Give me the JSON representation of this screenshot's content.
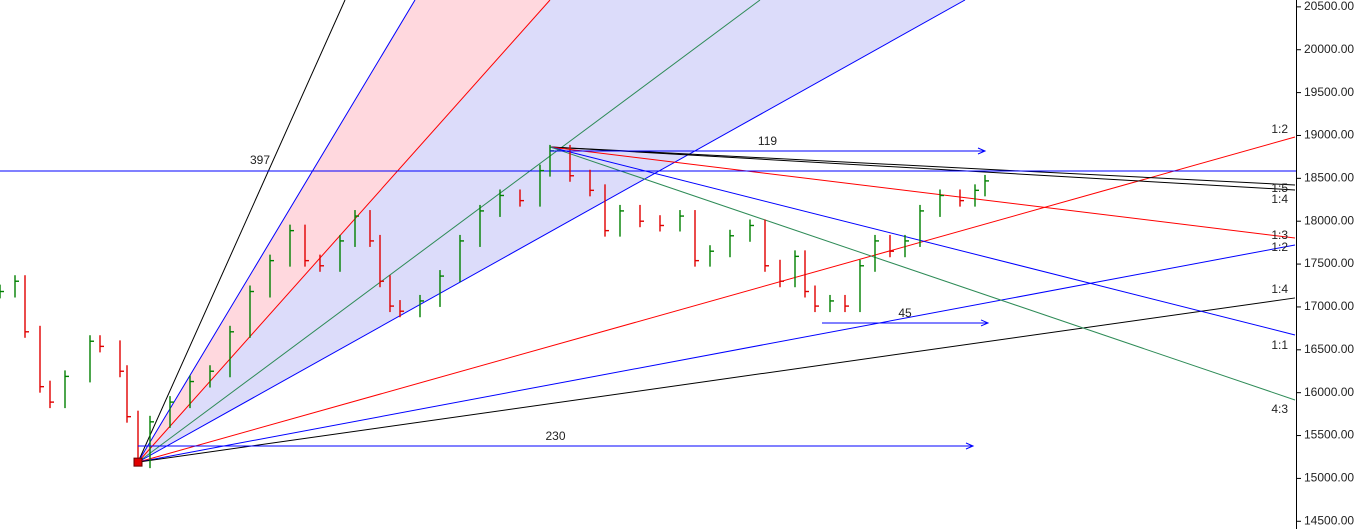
{
  "chart_data": {
    "type": "ohlc",
    "up_color": "#008000",
    "down_color": "#e00000",
    "x": [
      0,
      15,
      25,
      40,
      50,
      65,
      90,
      100,
      120,
      127,
      138,
      150,
      170,
      190,
      210,
      230,
      250,
      270,
      290,
      305,
      320,
      340,
      355,
      370,
      380,
      390,
      400,
      420,
      440,
      460,
      480,
      500,
      520,
      540,
      550,
      570,
      590,
      605,
      620,
      640,
      660,
      680,
      695,
      710,
      730,
      750,
      765,
      780,
      795,
      805,
      815,
      830,
      845,
      860,
      875,
      890,
      905,
      920,
      940,
      960,
      975,
      985
    ],
    "high": [
      17260,
      17370,
      17370,
      16780,
      16140,
      16260,
      16670,
      16670,
      16610,
      16320,
      15790,
      15730,
      15960,
      16200,
      16320,
      16780,
      17250,
      17610,
      17960,
      17960,
      17610,
      17840,
      18130,
      18130,
      17840,
      17370,
      17080,
      17140,
      17430,
      17840,
      18190,
      18370,
      18370,
      18660,
      18890,
      18890,
      18600,
      18430,
      18190,
      18190,
      18070,
      18130,
      18130,
      17720,
      17900,
      18020,
      18020,
      17550,
      17660,
      17660,
      17250,
      17140,
      17140,
      17550,
      17840,
      17840,
      17840,
      18190,
      18370,
      18370,
      18430,
      18540
    ],
    "low": [
      17100,
      17110,
      16640,
      16000,
      15820,
      15820,
      16120,
      16470,
      16180,
      15650,
      15150,
      15120,
      15590,
      15820,
      16060,
      16180,
      16640,
      17110,
      17470,
      17470,
      17410,
      17410,
      17700,
      17700,
      17230,
      16940,
      16880,
      16880,
      17000,
      17290,
      17700,
      18050,
      18170,
      18170,
      18520,
      18460,
      18290,
      17820,
      17820,
      17930,
      17880,
      17880,
      17470,
      17470,
      17580,
      17760,
      17410,
      17230,
      17230,
      17110,
      16940,
      16940,
      16940,
      16940,
      17410,
      17580,
      17580,
      17700,
      18050,
      18170,
      18170,
      18290
    ],
    "close": [
      17180,
      17300,
      16710,
      16070,
      15890,
      16190,
      16600,
      16540,
      16250,
      15720,
      15190,
      15660,
      15890,
      16130,
      16250,
      16710,
      17180,
      17540,
      17890,
      17540,
      17480,
      17770,
      18060,
      17770,
      17300,
      17010,
      16950,
      17070,
      17360,
      17770,
      18120,
      18300,
      18240,
      18590,
      18820,
      18530,
      18360,
      17890,
      18120,
      18000,
      17950,
      18060,
      17540,
      17650,
      17830,
      17950,
      17480,
      17300,
      17590,
      17180,
      17010,
      17070,
      17010,
      17480,
      17770,
      17650,
      17770,
      18120,
      18300,
      18240,
      18360,
      18470
    ],
    "xlim": [
      0,
      1295
    ],
    "ylim": [
      14410,
      20580
    ],
    "yticks": [
      {
        "value": 14500,
        "label": "14500.00"
      },
      {
        "value": 15000,
        "label": "15000.00"
      },
      {
        "value": 15500,
        "label": "15500.00"
      },
      {
        "value": 16000,
        "label": "16000.00"
      },
      {
        "value": 16500,
        "label": "16500.00"
      },
      {
        "value": 17000,
        "label": "17000.00"
      },
      {
        "value": 17500,
        "label": "17500.00"
      },
      {
        "value": 18000,
        "label": "18000.00"
      },
      {
        "value": 18500,
        "label": "18500.00"
      },
      {
        "value": 19000,
        "label": "19000.00"
      },
      {
        "value": 19500,
        "label": "19500.00"
      },
      {
        "value": 20000,
        "label": "20000.00"
      },
      {
        "value": 20500,
        "label": "20500.00"
      }
    ],
    "horizontal_line": {
      "value": 18586,
      "color": "#0000ff",
      "label": "397",
      "label_x": 260
    },
    "fans": [
      {
        "origin": [
          138,
          15190
        ],
        "lines": [
          {
            "to": [
              345,
              20580
            ],
            "color": "#000000"
          },
          {
            "to": [
              415,
              20580
            ],
            "color": "#0000ff"
          },
          {
            "to": [
              550,
              20580
            ],
            "color": "#ff0000"
          },
          {
            "to": [
              760,
              20580
            ],
            "color": "#2e8b57"
          },
          {
            "to": [
              965,
              20580
            ],
            "color": "#0000ff"
          },
          {
            "to": [
              1295,
              18982
            ],
            "color": "#ff0000"
          },
          {
            "to": [
              1295,
              17723
            ],
            "color": "#0000ff"
          },
          {
            "to": [
              1295,
              17105
            ],
            "color": "#000000"
          }
        ]
      },
      {
        "origin": [
          550,
          18866
        ],
        "lines": [
          {
            "to": [
              1295,
              18422
            ],
            "color": "#000000"
          },
          {
            "to": [
              1295,
              18364
            ],
            "color": "#000000"
          },
          {
            "to": [
              1295,
              17804
            ],
            "color": "#ff0000"
          },
          {
            "to": [
              1295,
              16673
            ],
            "color": "#0000ff"
          },
          {
            "to": [
              1295,
              15915
            ],
            "color": "#2e8b57"
          }
        ]
      }
    ],
    "arrows": [
      {
        "label": "119",
        "x": [
          550,
          985
        ],
        "y": 18819,
        "color": "#0000ff"
      },
      {
        "label": "230",
        "x": [
          138,
          973
        ],
        "y": 15378,
        "color": "#0000ff"
      },
      {
        "label": "45",
        "x": [
          822,
          988
        ],
        "y": 16813,
        "color": "#0000ff"
      }
    ],
    "fan_labels": [
      "1:2",
      "1:5",
      "1:4",
      "1:3",
      "1:2",
      "1:4",
      "1:1",
      "4:3"
    ]
  }
}
